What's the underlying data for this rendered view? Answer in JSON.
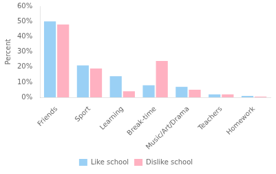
{
  "chart_data": {
    "type": "bar",
    "categories": [
      "Friends",
      "Sport",
      "Learning",
      "Break-time",
      "Music/Art/Drama",
      "Teachers",
      "Homework"
    ],
    "series": [
      {
        "name": "Like school",
        "values": [
          50,
          21,
          14,
          8,
          7,
          2,
          1
        ]
      },
      {
        "name": "Dislike school",
        "values": [
          48,
          19,
          4,
          24,
          5,
          2,
          0.5
        ]
      }
    ],
    "ylabel": "Percent",
    "ylim": [
      0,
      60
    ],
    "yticks": [
      {
        "value": 0,
        "label": "0%"
      },
      {
        "value": 10,
        "label": "10%"
      },
      {
        "value": 20,
        "label": "20%"
      },
      {
        "value": 30,
        "label": "30%"
      },
      {
        "value": 40,
        "label": "40%"
      },
      {
        "value": 50,
        "label": "50%"
      },
      {
        "value": 60,
        "label": "60%"
      }
    ],
    "grid": false,
    "legend": "bottom"
  }
}
